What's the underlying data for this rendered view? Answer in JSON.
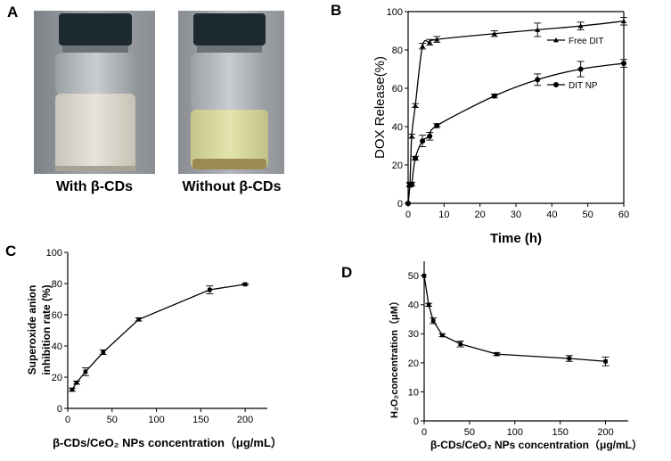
{
  "panels": {
    "a": {
      "letter": "A",
      "left_caption": "With β-CDs",
      "right_caption": "Without β-CDs"
    },
    "b": {
      "letter": "B"
    },
    "c": {
      "letter": "C"
    },
    "d": {
      "letter": "D"
    }
  },
  "colors": {
    "axis": "#000000",
    "photo_bg": "#8a8f96",
    "cap": "#1d2a30",
    "milky_liquid": "#dcd8cd",
    "yellow_liquid": "#d7d79a",
    "sediment": "#9c8a52"
  },
  "chart_data": [
    {
      "panel": "B",
      "type": "line",
      "xlabel": "Time (h)",
      "ylabel": "DOX Release(%)",
      "xlim": [
        0,
        60
      ],
      "ylim": [
        0,
        100
      ],
      "xticks": [
        0,
        10,
        20,
        30,
        40,
        50,
        60
      ],
      "yticks": [
        0,
        20,
        40,
        60,
        80,
        100
      ],
      "legend_position": "top-right",
      "series": [
        {
          "name": "Free DIT",
          "marker": "triangle",
          "x": [
            0,
            0.5,
            1,
            2,
            4,
            6,
            8,
            24,
            36,
            48,
            60
          ],
          "y": [
            0,
            10,
            35,
            51,
            82,
            84,
            85.5,
            88.5,
            90.5,
            92.5,
            95
          ],
          "err": [
            0,
            1,
            1,
            1,
            1.5,
            1.5,
            1.5,
            1.5,
            3.5,
            2,
            2
          ]
        },
        {
          "name": "DIT NP",
          "marker": "circle",
          "x": [
            0,
            0.5,
            1,
            2,
            4,
            6,
            8,
            24,
            36,
            48,
            60
          ],
          "y": [
            0,
            9.5,
            10,
            23.5,
            32.5,
            35,
            40.5,
            56,
            64.5,
            70,
            73
          ],
          "err": [
            0,
            1,
            1,
            1,
            3,
            2,
            1,
            1,
            3,
            4,
            2
          ]
        }
      ]
    },
    {
      "panel": "C",
      "type": "line",
      "xlabel": "β-CDs/CeO₂ NPs concentration（μg/mL）",
      "ylabel_lines": [
        "Superoxide anion",
        "inhibition rate (%)"
      ],
      "xlim": [
        0,
        225
      ],
      "ylim": [
        0,
        100
      ],
      "xticks": [
        0,
        50,
        100,
        150,
        200
      ],
      "yticks": [
        0,
        20,
        40,
        60,
        80,
        100
      ],
      "series": [
        {
          "marker": "square",
          "x": [
            5,
            10,
            20,
            40,
            80,
            160,
            200
          ],
          "y": [
            12,
            16.5,
            23.5,
            36,
            57,
            76,
            79.5
          ],
          "err": [
            1,
            1,
            2.5,
            1.5,
            1,
            2.5,
            0.5
          ]
        }
      ]
    },
    {
      "panel": "D",
      "type": "line",
      "xlabel": "β-CDs/CeO₂ NPs concentration（μg/mL）",
      "ylabel": "H₂O₂concentration（μM）",
      "xlim": [
        0,
        225
      ],
      "ylim": [
        0,
        55
      ],
      "xticks": [
        0,
        50,
        100,
        150,
        200
      ],
      "yticks": [
        0,
        10,
        20,
        30,
        40,
        50
      ],
      "series": [
        {
          "marker": "square",
          "x": [
            0,
            5,
            10,
            20,
            40,
            80,
            160,
            200
          ],
          "y": [
            50,
            40,
            34.5,
            29.5,
            26.5,
            23,
            21.5,
            20.5
          ],
          "err": [
            0,
            0.5,
            1,
            0.5,
            1,
            0.5,
            1,
            1.5
          ]
        }
      ]
    }
  ]
}
